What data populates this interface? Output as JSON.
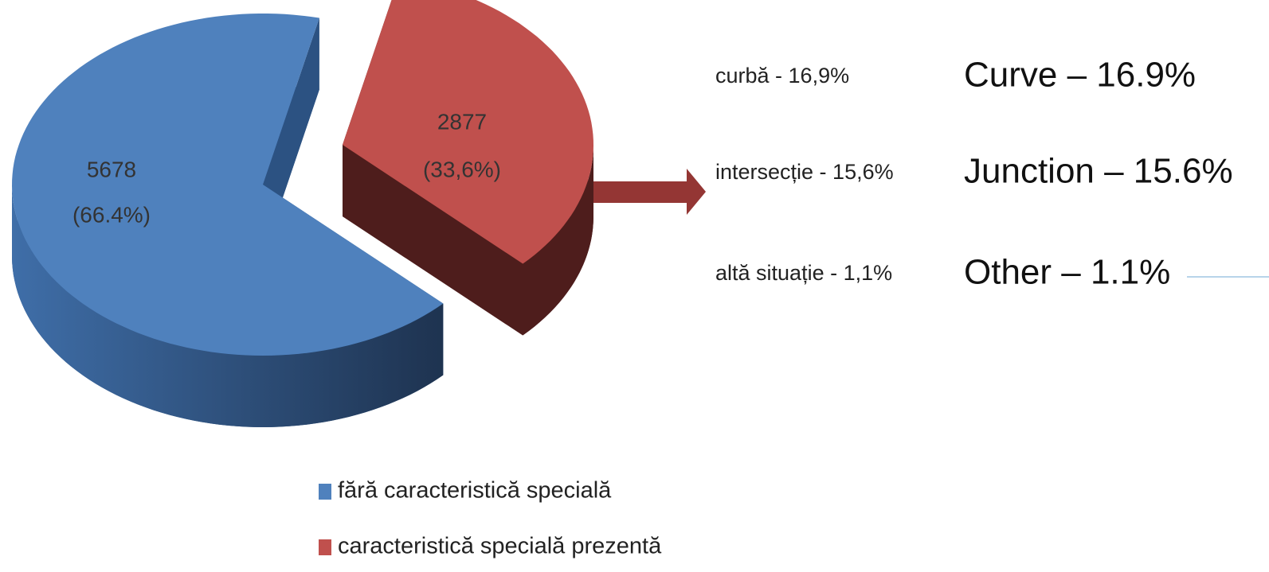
{
  "chart_data": {
    "type": "pie3d",
    "categories": [
      "fără caracteristică specială",
      "caracteristică specială prezentă"
    ],
    "values": [
      5678,
      2877
    ],
    "percentage_labels": [
      "(66.4%)",
      "(33,6%)"
    ],
    "colors": [
      "#4f81bd",
      "#c0504d"
    ],
    "side_colors": [
      "#2c5282",
      "#4e1d1c"
    ],
    "breakdown": [
      {
        "label": "curbă  - 16,9%",
        "translation": "Curve – 16.9%"
      },
      {
        "label": "intersecție - 15,6%",
        "translation": "Junction – 15.6%"
      },
      {
        "label": "altă situație - 1,1%",
        "translation": "Other – 1.1%"
      }
    ],
    "legend": "bottom"
  }
}
